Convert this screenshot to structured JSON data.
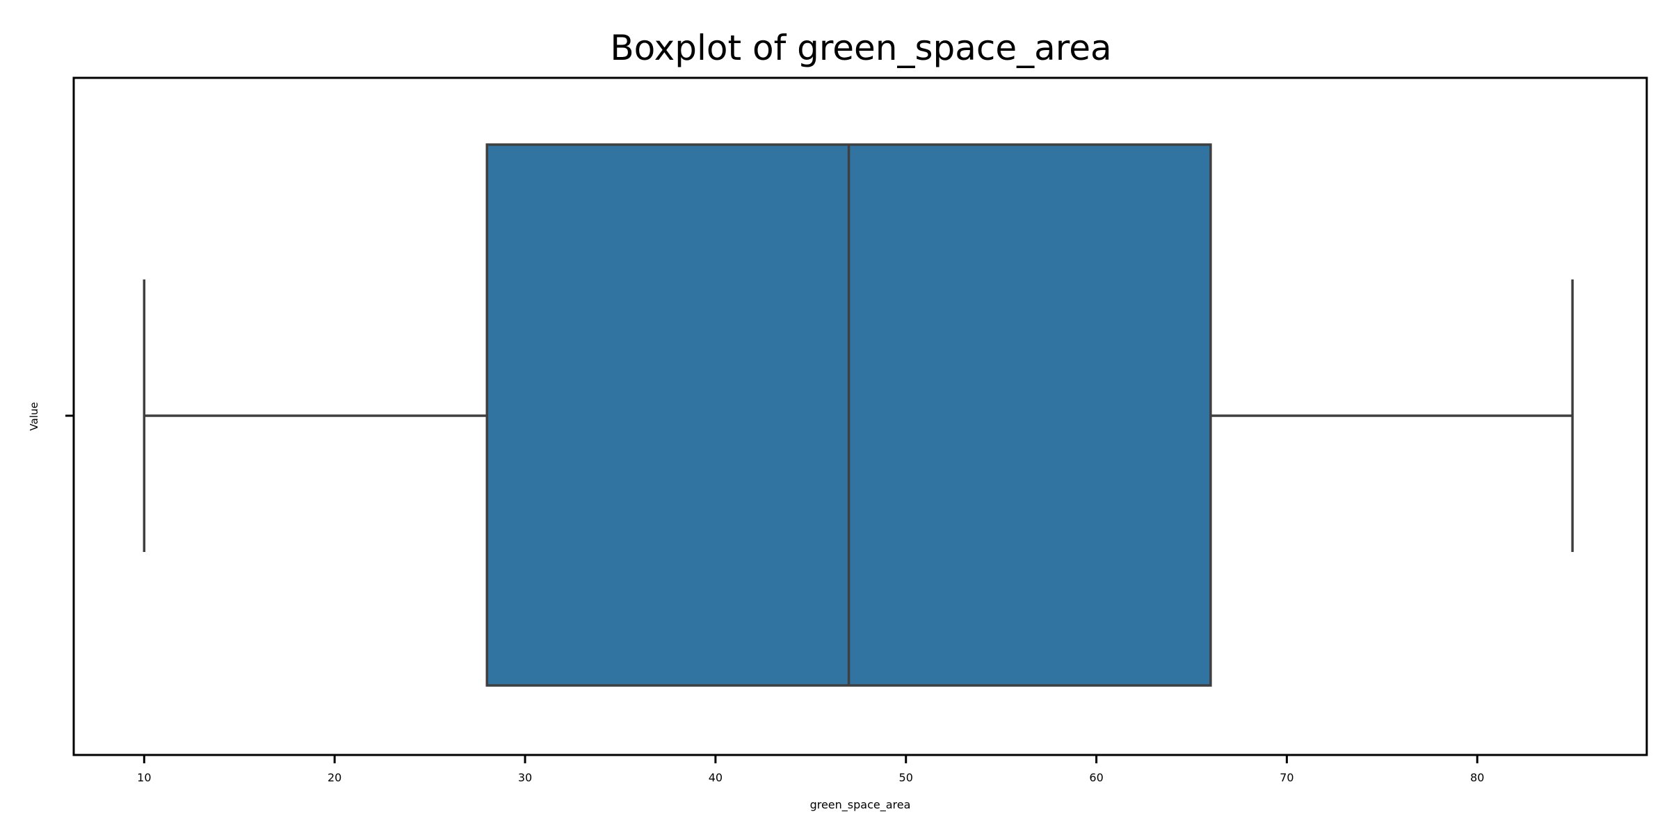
{
  "chart_data": {
    "type": "box",
    "title": "Boxplot of green_space_area",
    "xlabel": "green_space_area",
    "ylabel": "Value",
    "orientation": "horizontal",
    "xlim": [
      6.3,
      88.9
    ],
    "xticks": [
      10,
      20,
      30,
      40,
      50,
      60,
      70,
      80
    ],
    "box": {
      "whisker_low": 10,
      "q1": 28,
      "median": 47,
      "q3": 66,
      "whisker_high": 85
    },
    "grid": false,
    "legend": "none",
    "colors": {
      "box_fill": "#3274a1",
      "line": "#3f3f3f",
      "axes": "#000000",
      "text": "#000000"
    }
  }
}
